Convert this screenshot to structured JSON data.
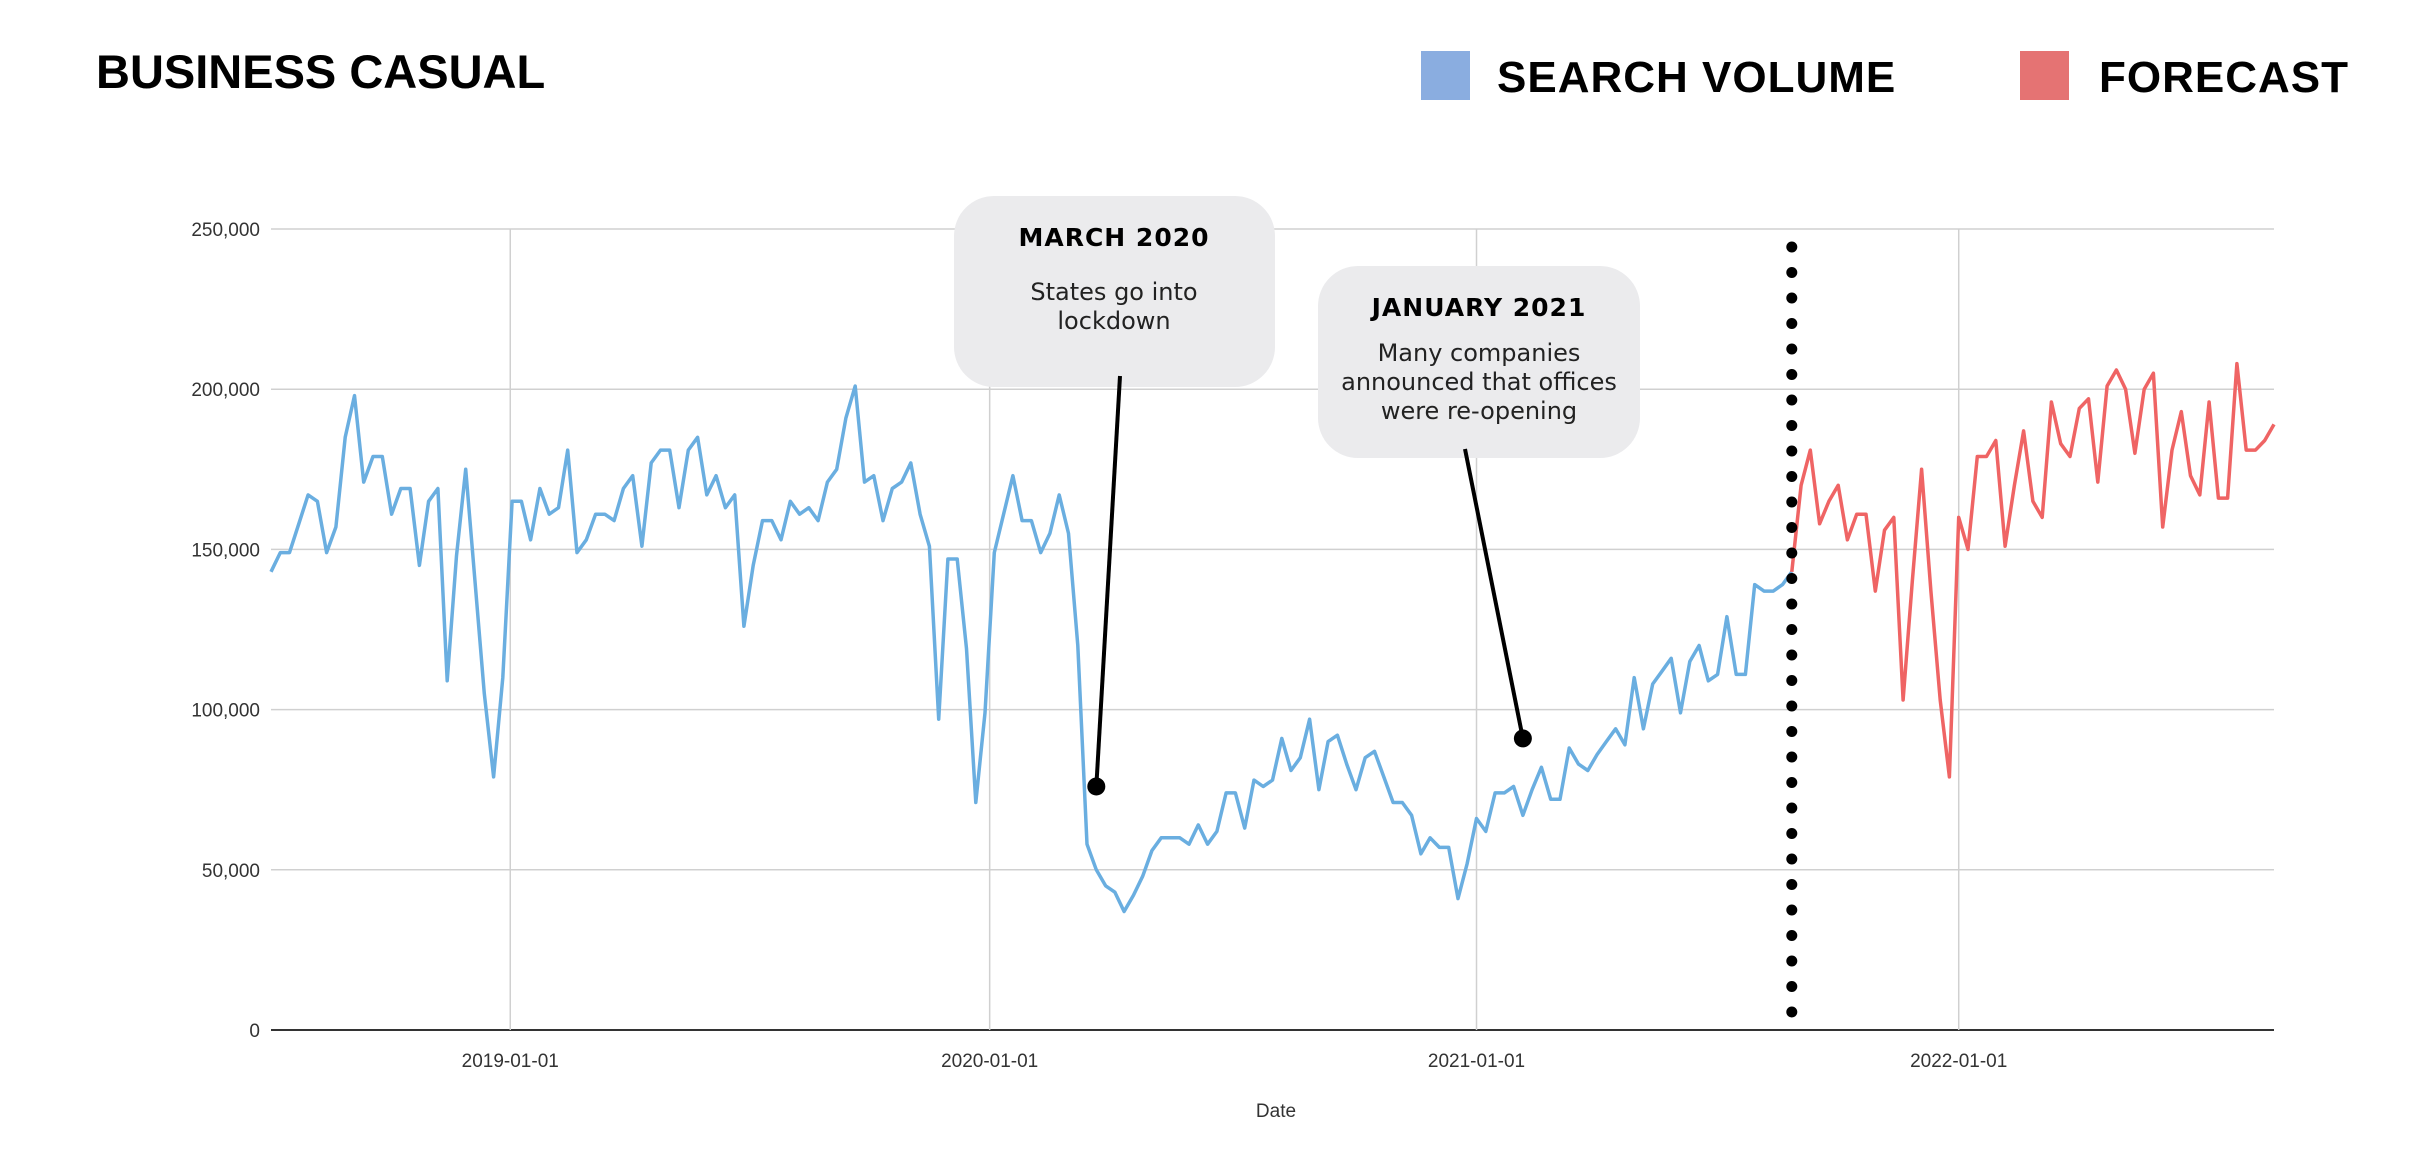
{
  "chart_data": {
    "type": "line",
    "title": "BUSINESS CASUAL",
    "xlabel": "Date",
    "ylabel": "",
    "ylim": [
      0,
      250000
    ],
    "y_ticks": [
      0,
      50000,
      100000,
      150000,
      200000,
      250000
    ],
    "y_tick_labels": [
      "0",
      "50,000",
      "100,000",
      "150,000",
      "200,000",
      "250,000"
    ],
    "x_unit": "week index",
    "xlim": [
      0,
      216
    ],
    "x_ticks": [
      {
        "label": "2019-01-01",
        "week": 25.8
      },
      {
        "label": "2020-01-01",
        "week": 77.5
      },
      {
        "label": "2021-01-01",
        "week": 130
      },
      {
        "label": "2022-01-01",
        "week": 182
      }
    ],
    "grid": true,
    "legend": {
      "placement": "top-right",
      "entries": [
        {
          "label": "SEARCH VOLUME",
          "color": "#8aade0"
        },
        {
          "label": "FORECAST",
          "color": "#e57373"
        }
      ]
    },
    "series": [
      {
        "name": "SEARCH VOLUME",
        "color": "#6aaee0",
        "start_week": 0,
        "values_thousands": [
          143,
          149,
          149,
          158,
          167,
          165,
          149,
          157,
          185,
          198,
          171,
          179,
          179,
          161,
          169,
          169,
          145,
          165,
          169,
          109,
          148,
          175,
          140,
          105,
          79,
          110,
          165,
          165,
          153,
          169,
          161,
          163,
          181,
          149,
          153,
          161,
          161,
          159,
          169,
          173,
          151,
          177,
          181,
          181,
          163,
          181,
          185,
          167,
          173,
          163,
          167,
          126,
          145,
          159,
          159,
          153,
          165,
          161,
          163,
          159,
          171,
          175,
          191,
          201,
          171,
          173,
          159,
          169,
          171,
          177,
          161,
          151,
          97,
          147,
          147,
          119,
          71,
          99,
          149,
          161,
          173,
          159,
          159,
          149,
          155,
          167,
          155,
          120,
          58,
          50,
          45,
          43,
          37,
          42,
          48,
          56,
          60,
          60,
          60,
          58,
          64,
          58,
          62,
          74,
          74,
          63,
          78,
          76,
          78,
          91,
          81,
          85,
          97,
          75,
          90,
          92,
          83,
          75,
          85,
          87,
          79,
          71,
          71,
          67,
          55,
          60,
          57,
          57,
          41,
          52,
          66,
          62,
          74,
          74,
          76,
          67,
          75,
          82,
          72,
          72,
          88,
          83,
          81,
          86,
          90,
          94,
          89,
          110,
          94,
          108,
          112,
          116,
          99,
          115,
          120,
          109,
          111,
          129,
          111,
          111,
          139,
          137,
          137,
          139,
          143
        ]
      },
      {
        "name": "FORECAST",
        "color": "#ef6464",
        "start_week": 164,
        "values_thousands": [
          143,
          170,
          181,
          158,
          165,
          170,
          153,
          161,
          161,
          137,
          156,
          160,
          103,
          140,
          175,
          137,
          103,
          79,
          160,
          150,
          179,
          179,
          184,
          151,
          170,
          187,
          165,
          160,
          196,
          183,
          179,
          194,
          197,
          171,
          201,
          206,
          200,
          180,
          200,
          205,
          157,
          181,
          193,
          173,
          167,
          196,
          166,
          166,
          208,
          181,
          181,
          184,
          189
        ]
      }
    ],
    "forecast_start_week": 164,
    "annotations": [
      {
        "title": "MARCH 2020",
        "lines": [
          "States go into",
          "lockdown"
        ],
        "week": 89,
        "value": 76000
      },
      {
        "title": "JANUARY 2021",
        "lines": [
          "Many companies",
          "announced that offices",
          "were re-opening"
        ],
        "week": 135,
        "value": 91000
      }
    ]
  }
}
